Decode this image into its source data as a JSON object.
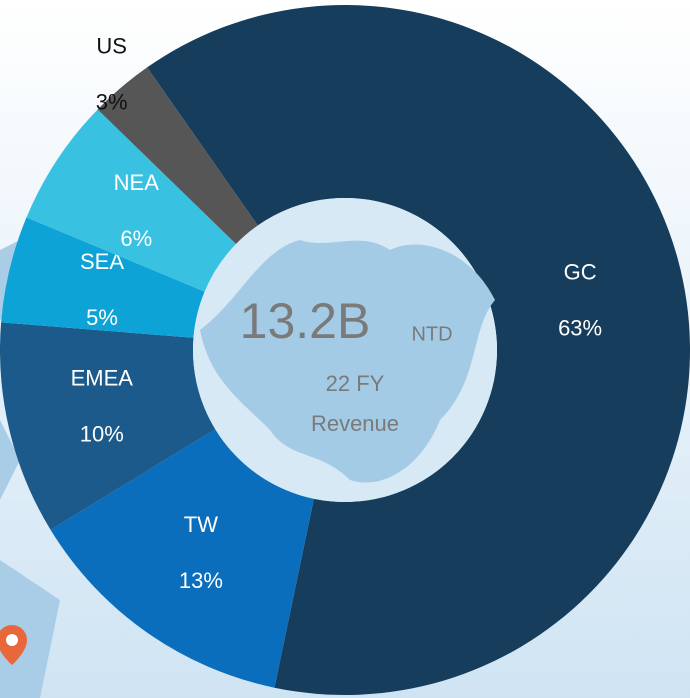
{
  "chart_data": {
    "type": "donut",
    "categories": [
      "GC",
      "TW",
      "EMEA",
      "SEA",
      "NEA",
      "US"
    ],
    "values": [
      63,
      13,
      10,
      5,
      6,
      3
    ],
    "value_labels": [
      "63%",
      "13%",
      "10%",
      "5%",
      "6%",
      "3%"
    ],
    "colors": [
      "#173d5c",
      "#0a6ebd",
      "#1b5a8b",
      "#0ea3d6",
      "#38c1e0",
      "#565656"
    ],
    "center_value": "13.2B",
    "center_unit": "NTD",
    "center_lines": [
      "22 FY",
      "Revenue"
    ]
  }
}
